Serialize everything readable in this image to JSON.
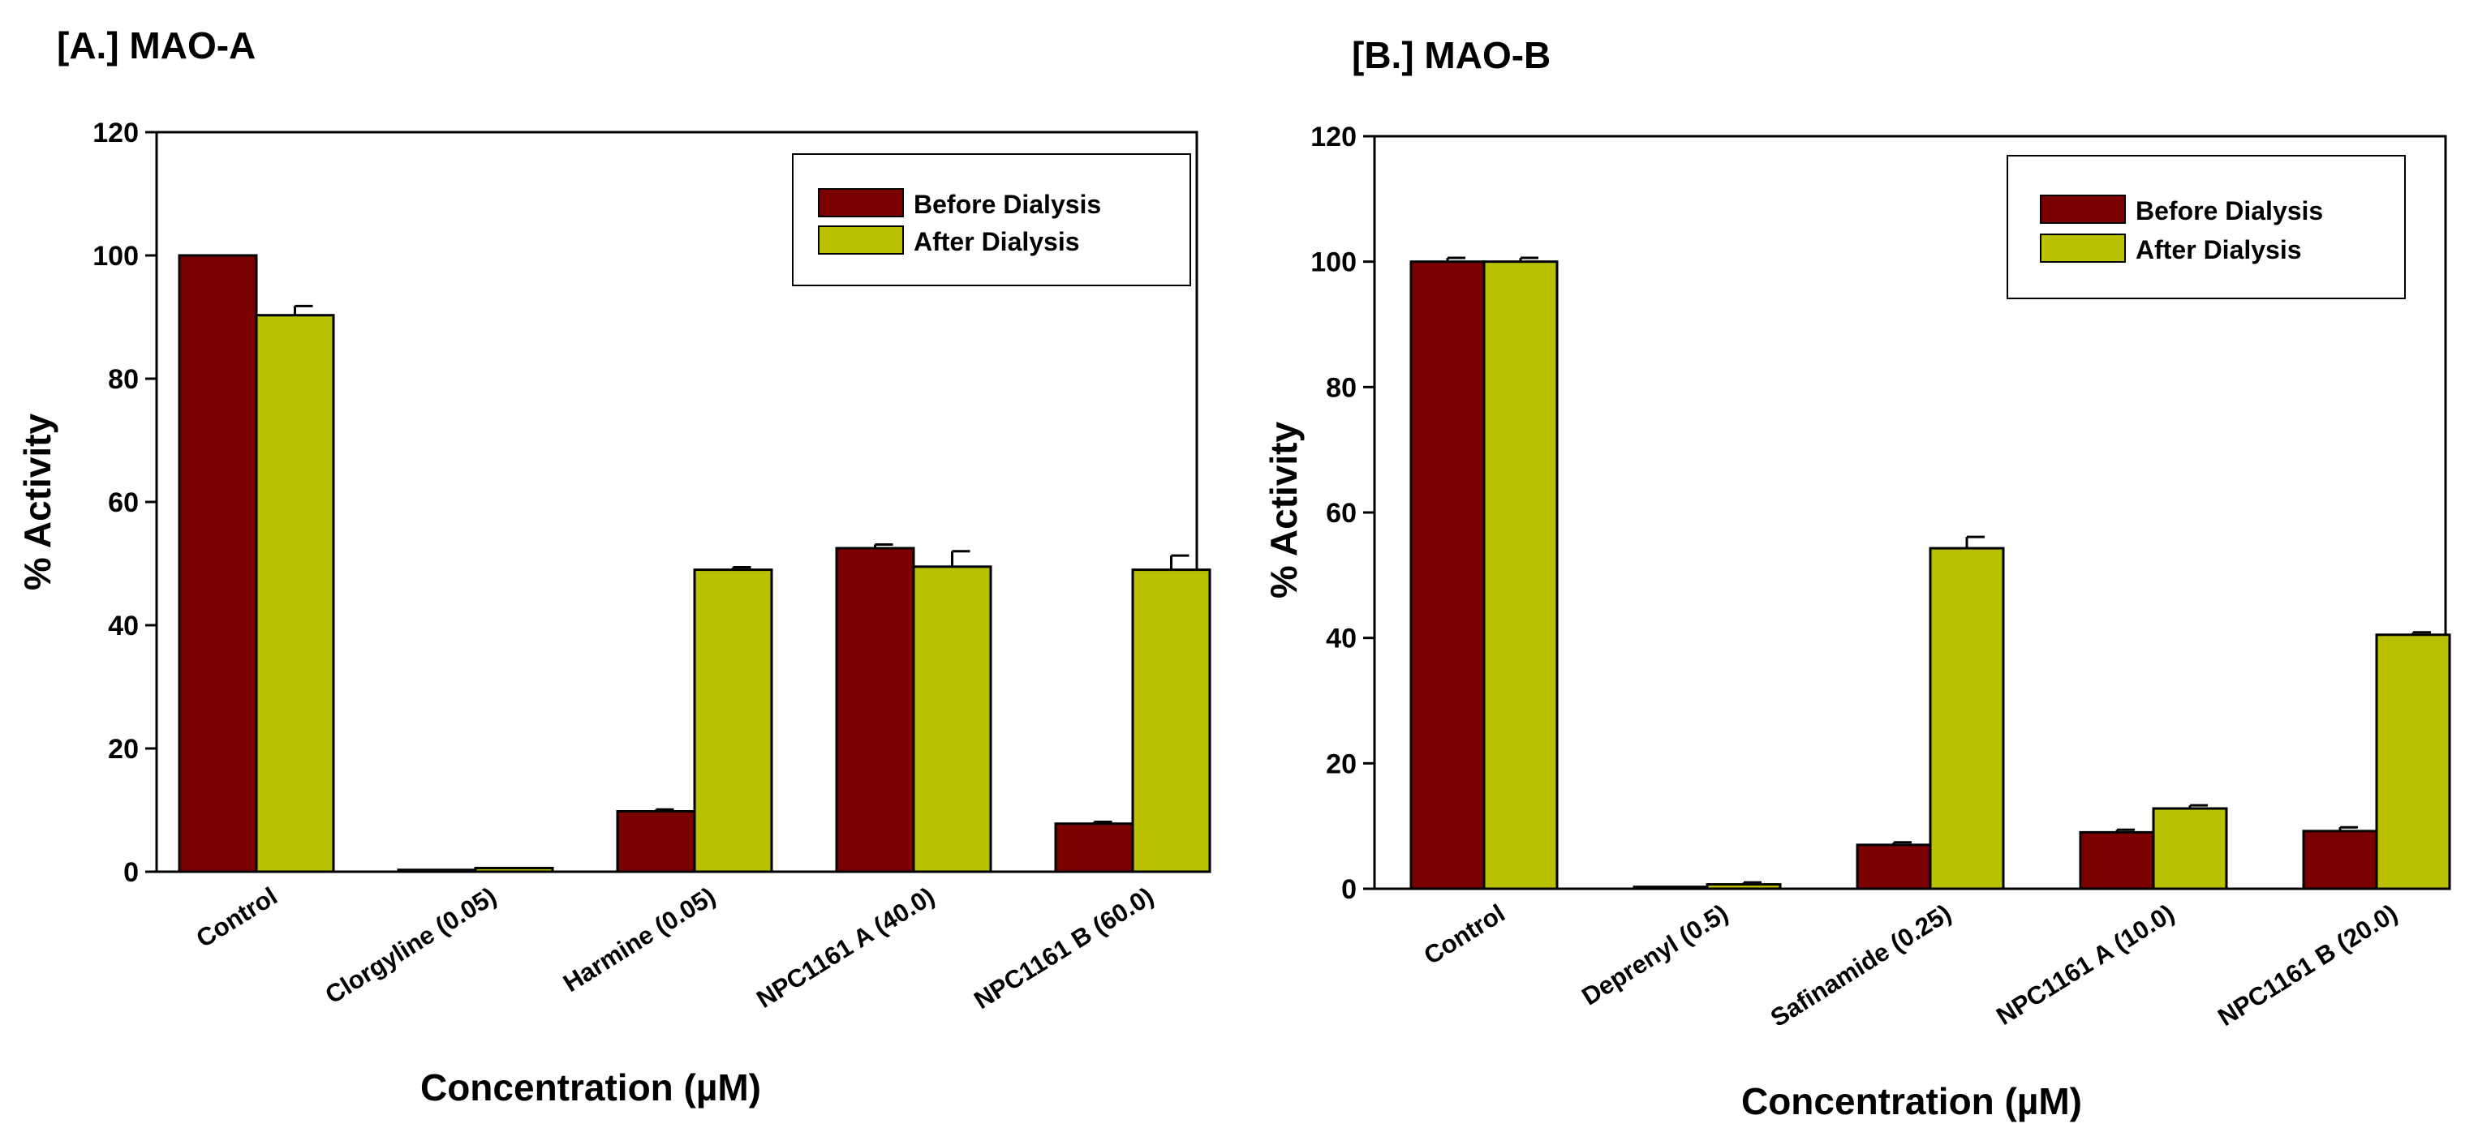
{
  "chart_data": [
    {
      "type": "bar",
      "title": "[A.] MAO-A",
      "xlabel": "Concentration (µM)",
      "ylabel": "% Activity",
      "ylim": [
        0,
        120
      ],
      "yticks": [
        0,
        20,
        40,
        60,
        80,
        100,
        120
      ],
      "categories": [
        "Control",
        "Clorgyline (0.05)",
        "Harmine (0.05)",
        "NPC1161 A (40.0)",
        "NPC1161 B (60.0)"
      ],
      "series": [
        {
          "name": "Before Dialysis",
          "color": "#7b0000",
          "values": [
            100,
            0.3,
            9.8,
            52.5,
            7.8
          ],
          "errors": [
            0,
            0,
            0.3,
            0.6,
            0.3
          ]
        },
        {
          "name": "After Dialysis",
          "color": "#b9c100",
          "values": [
            90.3,
            0.6,
            49,
            49.5,
            49
          ],
          "errors": [
            1.5,
            0,
            0.4,
            2.5,
            2.3
          ]
        }
      ],
      "legend": "top-right",
      "grid": false
    },
    {
      "type": "bar",
      "title": "[B.] MAO-B",
      "xlabel": "Concentration (µM)",
      "ylabel": "% Activity",
      "ylim": [
        0,
        120
      ],
      "yticks": [
        0,
        20,
        40,
        60,
        80,
        100,
        120
      ],
      "categories": [
        "Control",
        "Deprenyl (0.5)",
        "Safinamide (0.25)",
        "NPC1161 A (10.0)",
        "NPC1161 B (20.0)"
      ],
      "series": [
        {
          "name": "Before Dialysis",
          "color": "#7b0000",
          "values": [
            100,
            0.3,
            7,
            9,
            9.2
          ],
          "errors": [
            0.6,
            0,
            0.4,
            0.4,
            0.6
          ]
        },
        {
          "name": "After Dialysis",
          "color": "#b9c100",
          "values": [
            100,
            0.7,
            54.3,
            12.8,
            40.5
          ],
          "errors": [
            0.6,
            0.3,
            1.8,
            0.5,
            0.4
          ]
        }
      ],
      "legend": "top-right",
      "grid": false
    }
  ]
}
